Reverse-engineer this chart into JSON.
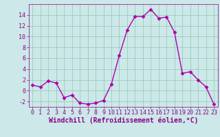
{
  "x": [
    0,
    1,
    2,
    3,
    4,
    5,
    6,
    7,
    8,
    9,
    10,
    11,
    12,
    13,
    14,
    15,
    16,
    17,
    18,
    19,
    20,
    21,
    22,
    23
  ],
  "y": [
    1,
    0.7,
    1.8,
    1.4,
    -1.3,
    -0.8,
    -2.3,
    -2.5,
    -2.3,
    -1.8,
    1.2,
    6.5,
    11.2,
    13.7,
    13.7,
    15.0,
    13.4,
    13.6,
    10.8,
    3.2,
    3.5,
    2.0,
    0.7,
    -2.5
  ],
  "line_color": "#aa00aa",
  "marker": "D",
  "marker_size": 2.5,
  "bg_color": "#cce8e8",
  "grid_color": "#99ccbb",
  "xlabel": "Windchill (Refroidissement éolien,°C)",
  "xlabel_color": "#880088",
  "tick_color": "#880088",
  "ylim": [
    -3,
    16
  ],
  "xlim": [
    -0.5,
    23.5
  ],
  "yticks": [
    -2,
    0,
    2,
    4,
    6,
    8,
    10,
    12,
    14
  ],
  "xticks": [
    0,
    1,
    2,
    3,
    4,
    5,
    6,
    7,
    8,
    9,
    10,
    11,
    12,
    13,
    14,
    15,
    16,
    17,
    18,
    19,
    20,
    21,
    22,
    23
  ],
  "tick_fontsize": 6.0,
  "xlabel_fontsize": 7.0,
  "linewidth": 1.0
}
